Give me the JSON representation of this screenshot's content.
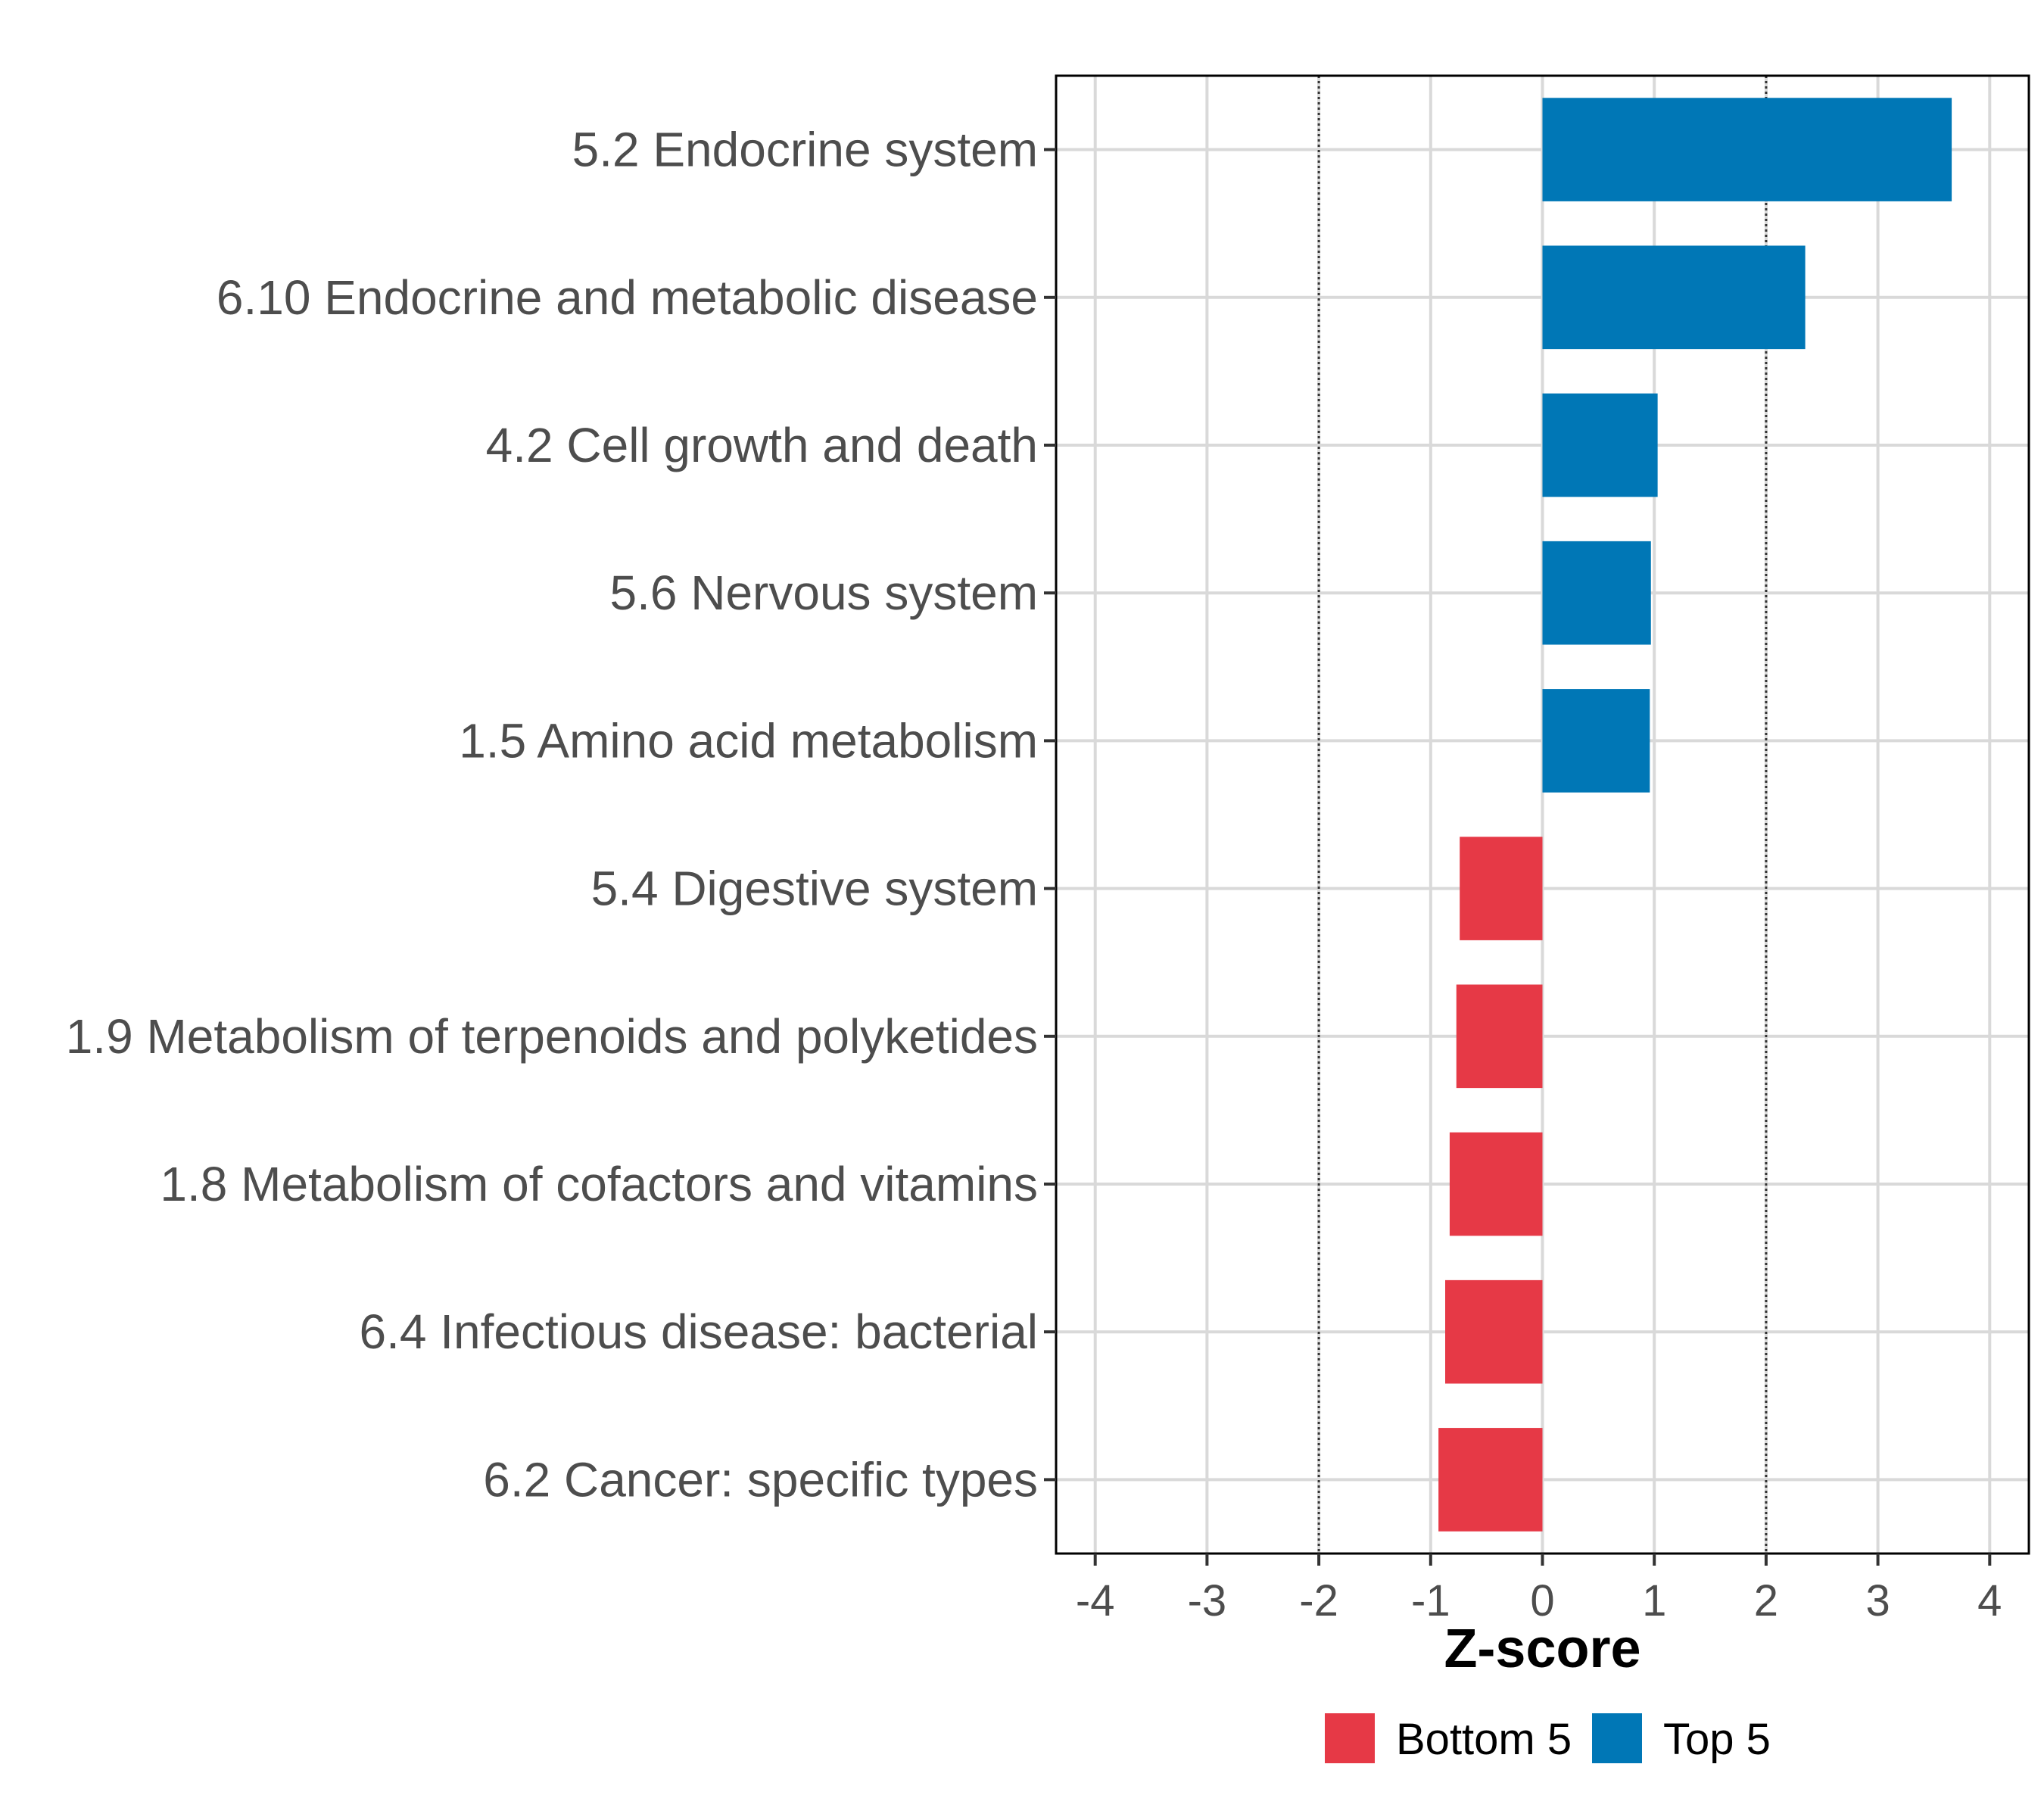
{
  "chart_data": {
    "type": "bar",
    "orientation": "horizontal",
    "title": "",
    "xlabel": "Z-score",
    "ylabel": "",
    "xlim": [
      -4.35,
      4.35
    ],
    "xticks": [
      -4,
      -3,
      -2,
      -1,
      0,
      1,
      2,
      3,
      4
    ],
    "xtick_labels": [
      "-4",
      "-3",
      "-2",
      "-1",
      "0",
      "1",
      "2",
      "3",
      "4"
    ],
    "reference_lines": [
      -2,
      2
    ],
    "grid": true,
    "legend_position": "bottom",
    "categories": [
      "5.2 Endocrine system",
      "6.10 Endocrine and metabolic disease",
      "4.2 Cell growth and death",
      "5.6 Nervous system",
      "1.5 Amino acid metabolism",
      "5.4 Digestive system",
      "1.9 Metabolism of terpenoids and polyketides",
      "1.8 Metabolism of cofactors and vitamins",
      "6.4 Infectious disease: bacterial",
      "6.2 Cancer: specific types"
    ],
    "values": [
      3.66,
      2.35,
      1.03,
      0.97,
      0.96,
      -0.74,
      -0.77,
      -0.83,
      -0.87,
      -0.93
    ],
    "groups": [
      "Top 5",
      "Top 5",
      "Top 5",
      "Top 5",
      "Top 5",
      "Bottom 5",
      "Bottom 5",
      "Bottom 5",
      "Bottom 5",
      "Bottom 5"
    ],
    "legend": [
      {
        "label": "Bottom 5",
        "color": "#E63946"
      },
      {
        "label": "Top 5",
        "color": "#0077B6"
      }
    ],
    "colors": {
      "Top 5": "#0077B6",
      "Bottom 5": "#E63946"
    }
  }
}
